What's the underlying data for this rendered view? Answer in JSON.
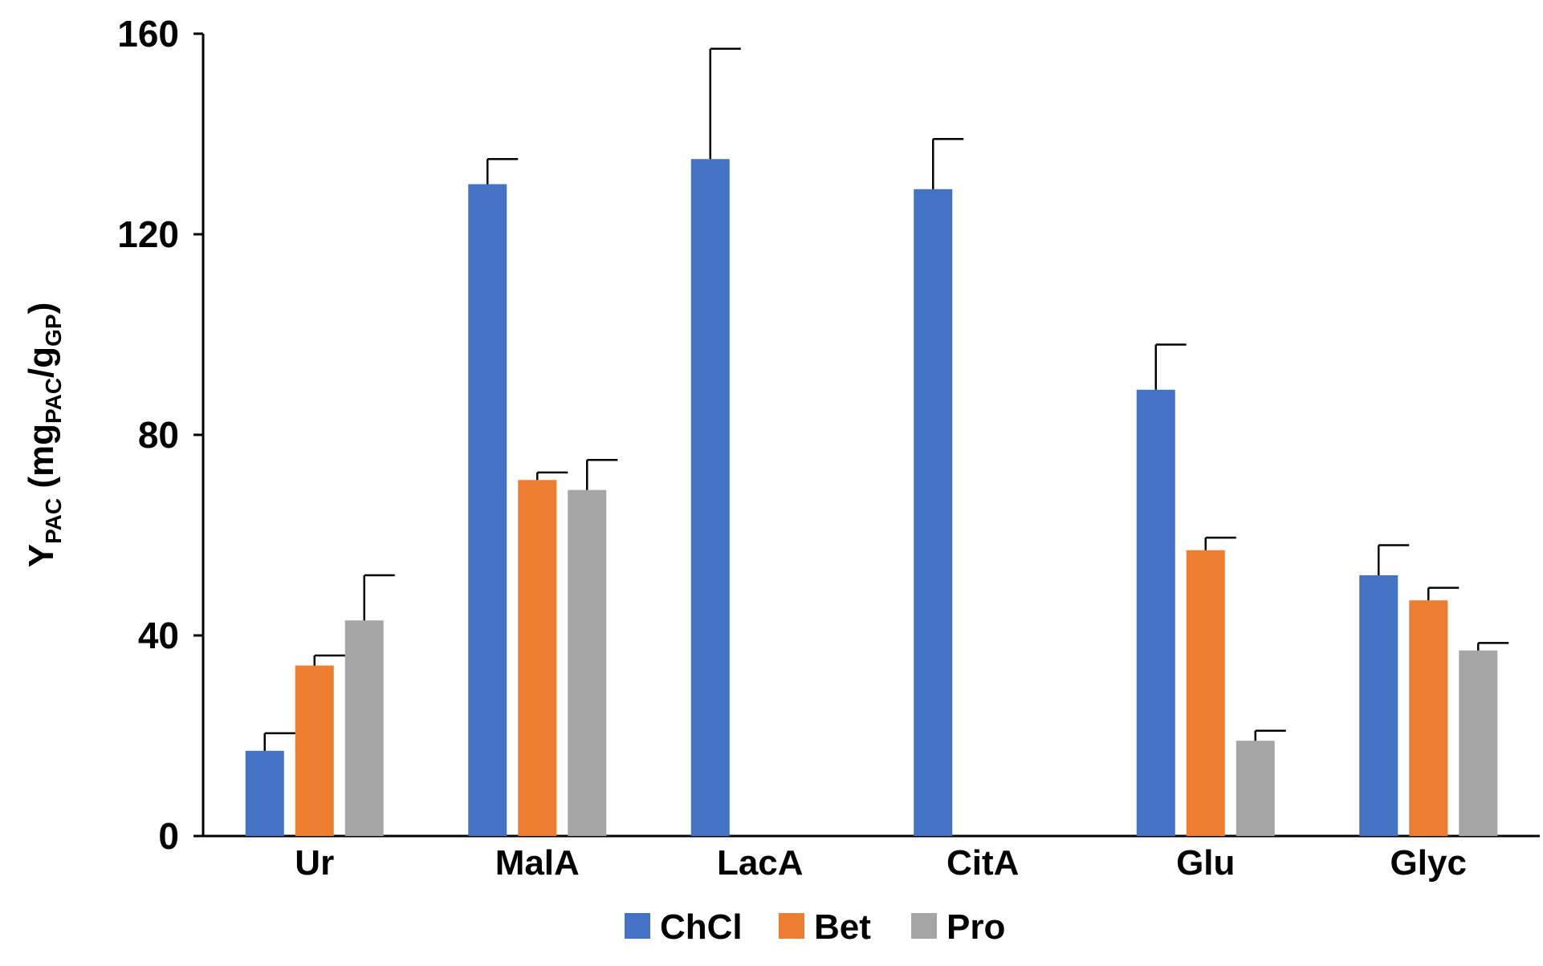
{
  "chart_data": {
    "type": "bar",
    "title": "",
    "xlabel": "",
    "ylabel": {
      "main": "Y",
      "sub1": "PAC",
      "part2": " (mg",
      "sub2": "PAC",
      "part3": "/g",
      "sub3": "GP",
      "part4": ")"
    },
    "ylim": [
      0,
      160
    ],
    "yticks": [
      0,
      40,
      80,
      120,
      160
    ],
    "categories": [
      "Ur",
      "MalA",
      "LacA",
      "CitA",
      "Glu",
      "Glyc"
    ],
    "series": [
      {
        "name": "ChCl",
        "color": "#4472C4",
        "values": [
          17,
          130,
          135,
          129,
          89,
          52
        ],
        "errors": [
          3.5,
          5,
          22,
          10,
          9,
          6
        ]
      },
      {
        "name": "Bet",
        "color": "#ED7D31",
        "values": [
          34,
          71,
          null,
          null,
          57,
          47
        ],
        "errors": [
          2,
          1.5,
          null,
          null,
          2.5,
          2.5
        ]
      },
      {
        "name": "Pro",
        "color": "#A5A5A5",
        "values": [
          43,
          69,
          null,
          null,
          19,
          37
        ],
        "errors": [
          9,
          6,
          null,
          null,
          2,
          1.5
        ]
      }
    ],
    "legend_position": "bottom"
  }
}
